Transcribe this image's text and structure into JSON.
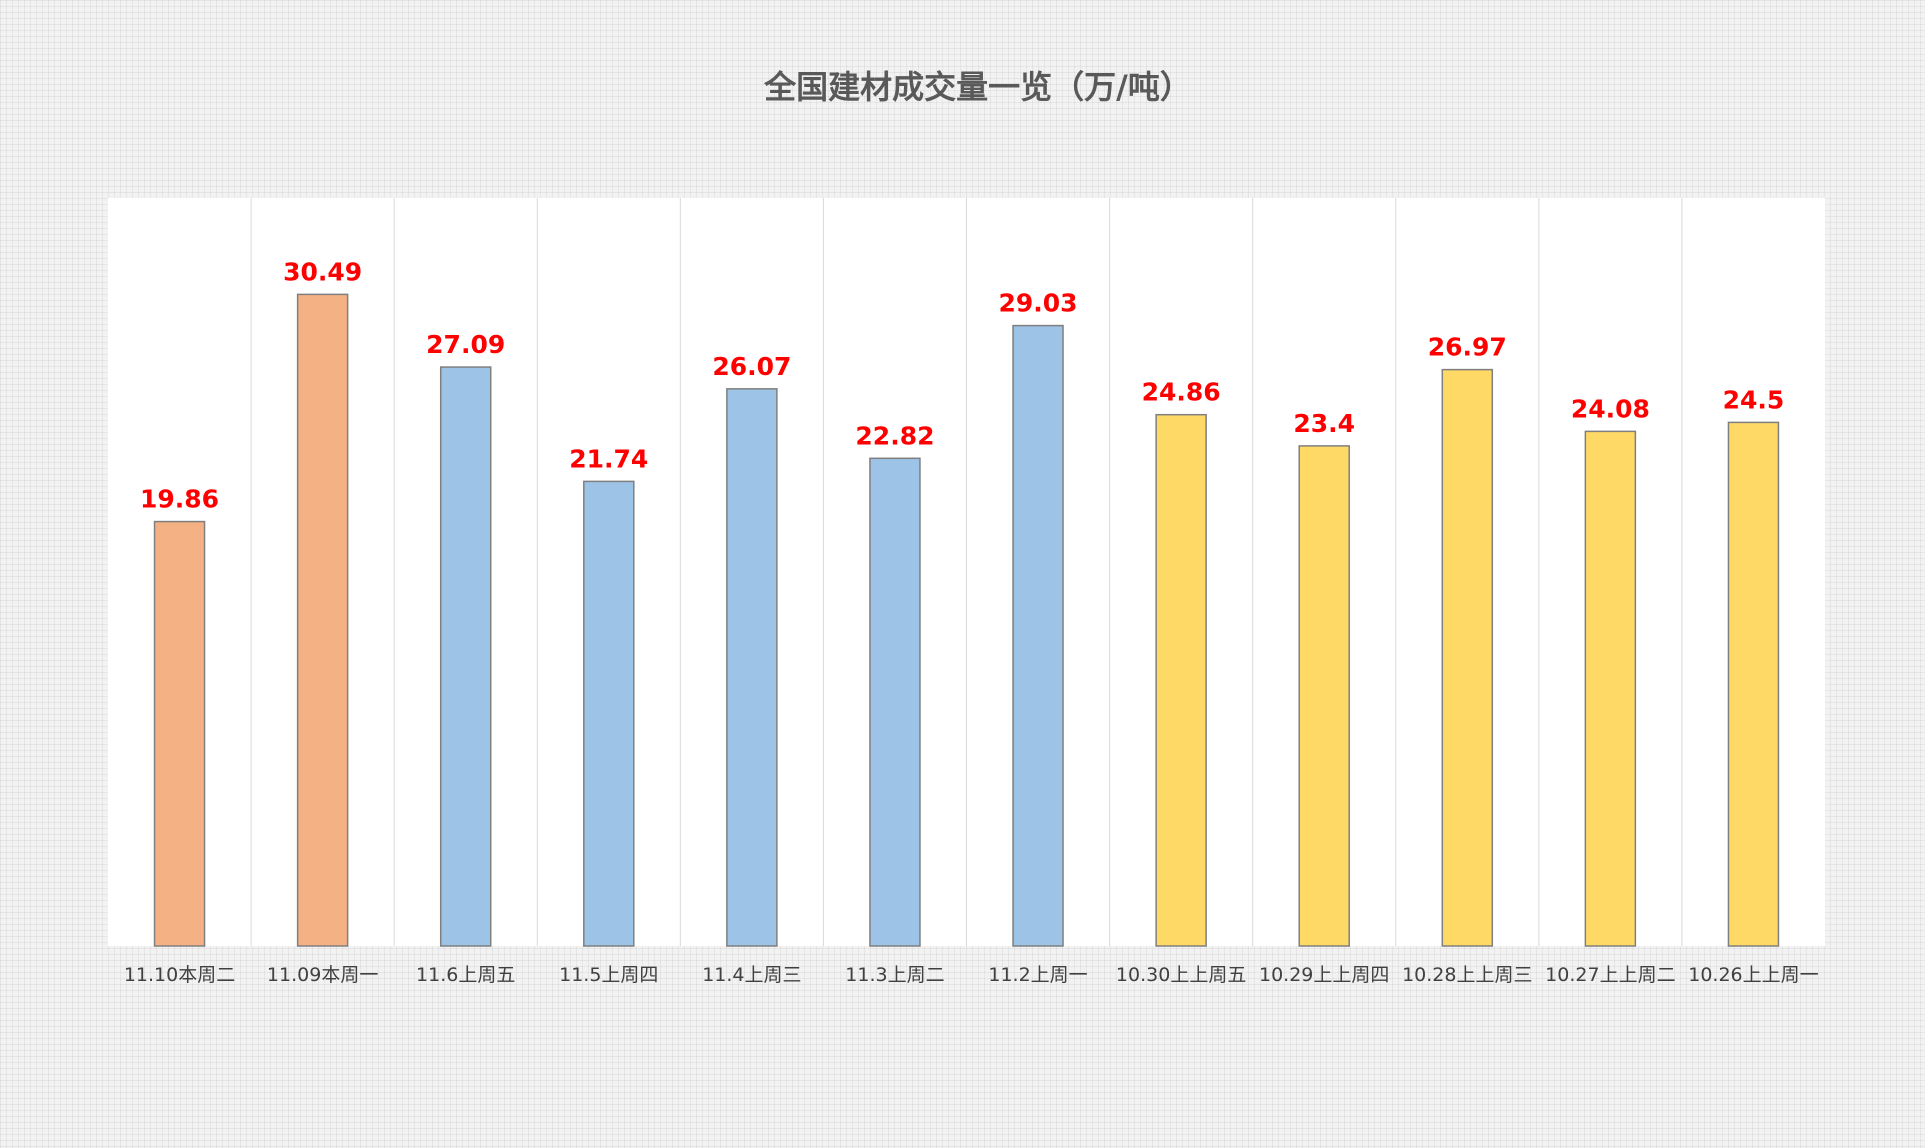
{
  "chart_data": {
    "type": "bar",
    "title": "全国建材成交量一览（万/吨）",
    "categories": [
      "11.10本周二",
      "11.09本周一",
      "11.6上周五",
      "11.5上周四",
      "11.4上周三",
      "11.3上周二",
      "11.2上周一",
      "10.30上上周五",
      "10.29上上周四",
      "10.28上上周三",
      "10.27上上周二",
      "10.26上上周一"
    ],
    "values": [
      19.86,
      30.49,
      27.09,
      21.74,
      26.07,
      22.82,
      29.03,
      24.86,
      23.4,
      26.97,
      24.08,
      24.5
    ],
    "value_labels": [
      "19.86",
      "30.49",
      "27.09",
      "21.74",
      "26.07",
      "22.82",
      "29.03",
      "24.86",
      "23.4",
      "26.97",
      "24.08",
      "24.5"
    ],
    "bar_colors": [
      "#f4b183",
      "#f4b183",
      "#9dc3e6",
      "#9dc3e6",
      "#9dc3e6",
      "#9dc3e6",
      "#9dc3e6",
      "#ffd966",
      "#ffd966",
      "#ffd966",
      "#ffd966",
      "#ffd966"
    ],
    "bar_border_color": "#7f7f7f",
    "label_color": "#ff0000",
    "ylim": [
      0,
      35
    ],
    "grid": "vertical separators",
    "legend": "none"
  }
}
